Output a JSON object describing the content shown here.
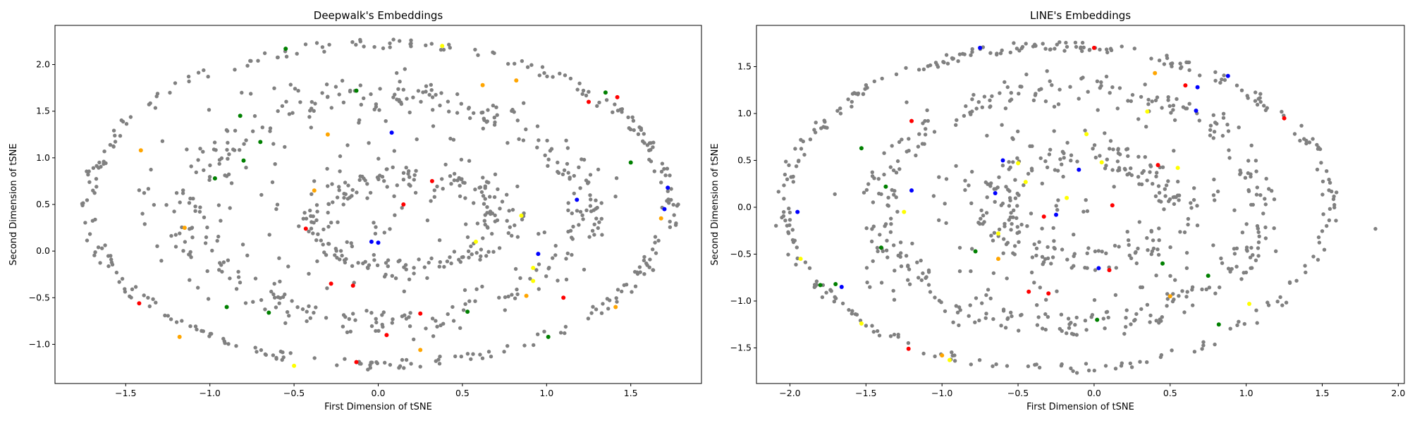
{
  "colors": {
    "gray": "#808080",
    "green": "#008000",
    "orange": "#ffa500",
    "yellow": "#ffff00",
    "red": "#ff0000",
    "blue": "#0000ff"
  },
  "chart_data": [
    {
      "type": "scatter",
      "title": "Deepwalk's Embeddings",
      "xlabel": "First Dimension of tSNE",
      "ylabel": "Second Dimension of tSNE",
      "xlim": [
        -1.92,
        1.92
      ],
      "ylim": [
        -1.42,
        2.42
      ],
      "xticks": [
        -1.5,
        -1.0,
        -0.5,
        0.0,
        0.5,
        1.0,
        1.5
      ],
      "yticks": [
        -1.0,
        -0.5,
        0.0,
        0.5,
        1.0,
        1.5,
        2.0
      ],
      "grid": false,
      "structure": {
        "outer_ring": {
          "cx": 0.0,
          "cy": 0.5,
          "rx": 1.73,
          "ry": 1.72
        },
        "middle_ring": {
          "cx": 0.05,
          "cy": 0.45,
          "rx": 1.18,
          "ry": 1.2
        },
        "inner_ring": {
          "cx": 0.2,
          "cy": 0.3,
          "rx": 0.55,
          "ry": 0.5
        }
      },
      "highlighted": [
        {
          "x": -1.42,
          "y": -0.56,
          "color": "red"
        },
        {
          "x": -1.41,
          "y": 1.08,
          "color": "orange"
        },
        {
          "x": -1.18,
          "y": -0.92,
          "color": "orange"
        },
        {
          "x": -1.15,
          "y": 0.25,
          "color": "orange"
        },
        {
          "x": -0.97,
          "y": 0.78,
          "color": "green"
        },
        {
          "x": -0.9,
          "y": -0.6,
          "color": "green"
        },
        {
          "x": -0.82,
          "y": 1.45,
          "color": "green"
        },
        {
          "x": -0.8,
          "y": 0.97,
          "color": "green"
        },
        {
          "x": -0.7,
          "y": 1.17,
          "color": "green"
        },
        {
          "x": -0.65,
          "y": -0.66,
          "color": "green"
        },
        {
          "x": -0.55,
          "y": 2.17,
          "color": "green"
        },
        {
          "x": -0.5,
          "y": -1.23,
          "color": "yellow"
        },
        {
          "x": -0.43,
          "y": 0.24,
          "color": "red"
        },
        {
          "x": -0.38,
          "y": 0.65,
          "color": "orange"
        },
        {
          "x": -0.3,
          "y": 1.25,
          "color": "orange"
        },
        {
          "x": -0.28,
          "y": -0.35,
          "color": "red"
        },
        {
          "x": -0.15,
          "y": -0.37,
          "color": "red"
        },
        {
          "x": -0.13,
          "y": 1.72,
          "color": "green"
        },
        {
          "x": -0.13,
          "y": -1.19,
          "color": "red"
        },
        {
          "x": -0.04,
          "y": 0.1,
          "color": "blue"
        },
        {
          "x": 0.0,
          "y": 0.09,
          "color": "blue"
        },
        {
          "x": 0.08,
          "y": 1.27,
          "color": "blue"
        },
        {
          "x": 0.05,
          "y": -0.9,
          "color": "red"
        },
        {
          "x": 0.15,
          "y": 0.5,
          "color": "red"
        },
        {
          "x": 0.25,
          "y": -0.67,
          "color": "red"
        },
        {
          "x": 0.25,
          "y": -1.06,
          "color": "orange"
        },
        {
          "x": 0.32,
          "y": 0.75,
          "color": "red"
        },
        {
          "x": 0.38,
          "y": 2.2,
          "color": "yellow"
        },
        {
          "x": 0.53,
          "y": -0.65,
          "color": "green"
        },
        {
          "x": 0.58,
          "y": 0.1,
          "color": "yellow"
        },
        {
          "x": 0.62,
          "y": 1.78,
          "color": "orange"
        },
        {
          "x": 0.82,
          "y": 1.83,
          "color": "orange"
        },
        {
          "x": 0.85,
          "y": 0.38,
          "color": "yellow"
        },
        {
          "x": 0.92,
          "y": -0.18,
          "color": "yellow"
        },
        {
          "x": 0.92,
          "y": -0.32,
          "color": "yellow"
        },
        {
          "x": 0.95,
          "y": -0.03,
          "color": "blue"
        },
        {
          "x": 0.88,
          "y": -0.48,
          "color": "orange"
        },
        {
          "x": 1.01,
          "y": -0.92,
          "color": "green"
        },
        {
          "x": 1.1,
          "y": -0.5,
          "color": "red"
        },
        {
          "x": 1.18,
          "y": 0.55,
          "color": "blue"
        },
        {
          "x": 1.25,
          "y": 1.6,
          "color": "red"
        },
        {
          "x": 1.35,
          "y": 1.7,
          "color": "green"
        },
        {
          "x": 1.42,
          "y": 1.65,
          "color": "red"
        },
        {
          "x": 1.41,
          "y": -0.6,
          "color": "orange"
        },
        {
          "x": 1.5,
          "y": 0.95,
          "color": "green"
        },
        {
          "x": 1.7,
          "y": 0.45,
          "color": "blue"
        },
        {
          "x": 1.72,
          "y": 0.68,
          "color": "blue"
        },
        {
          "x": 1.68,
          "y": 0.35,
          "color": "orange"
        }
      ]
    },
    {
      "type": "scatter",
      "title": "LINE's Embeddings",
      "xlabel": "First Dimension of tSNE",
      "ylabel": "Second Dimension of tSNE",
      "xlim": [
        -2.22,
        2.04
      ],
      "ylim": [
        -1.88,
        1.94
      ],
      "xticks": [
        -2.0,
        -1.5,
        -1.0,
        -0.5,
        0.0,
        0.5,
        1.0,
        1.5,
        2.0
      ],
      "yticks": [
        -1.5,
        -1.0,
        -0.5,
        0.0,
        0.5,
        1.0,
        1.5
      ],
      "grid": false,
      "structure": {
        "outer_ring": {
          "cx": -0.25,
          "cy": 0.0,
          "rx": 1.8,
          "ry": 1.72
        },
        "middle_ring": {
          "cx": -0.15,
          "cy": 0.0,
          "rx": 1.25,
          "ry": 1.25
        },
        "inner_ring": {
          "cx": -0.05,
          "cy": 0.0,
          "rx": 0.6,
          "ry": 0.55
        },
        "outlier": {
          "x": 1.85,
          "y": -0.23
        }
      },
      "highlighted": [
        {
          "x": -1.95,
          "y": -0.05,
          "color": "blue"
        },
        {
          "x": -1.93,
          "y": -0.55,
          "color": "yellow"
        },
        {
          "x": -1.8,
          "y": -0.83,
          "color": "green"
        },
        {
          "x": -1.7,
          "y": -0.82,
          "color": "green"
        },
        {
          "x": -1.66,
          "y": -0.85,
          "color": "blue"
        },
        {
          "x": -1.53,
          "y": 0.63,
          "color": "green"
        },
        {
          "x": -1.53,
          "y": -1.24,
          "color": "yellow"
        },
        {
          "x": -1.4,
          "y": -0.43,
          "color": "green"
        },
        {
          "x": -1.37,
          "y": 0.22,
          "color": "green"
        },
        {
          "x": -1.22,
          "y": -1.51,
          "color": "red"
        },
        {
          "x": -1.2,
          "y": 0.92,
          "color": "red"
        },
        {
          "x": -1.2,
          "y": 0.18,
          "color": "blue"
        },
        {
          "x": -1.25,
          "y": -0.05,
          "color": "yellow"
        },
        {
          "x": -1.0,
          "y": -1.58,
          "color": "orange"
        },
        {
          "x": -0.95,
          "y": -1.63,
          "color": "yellow"
        },
        {
          "x": -0.78,
          "y": -0.47,
          "color": "green"
        },
        {
          "x": -0.75,
          "y": 1.7,
          "color": "blue"
        },
        {
          "x": -0.65,
          "y": 0.15,
          "color": "blue"
        },
        {
          "x": -0.63,
          "y": -0.28,
          "color": "yellow"
        },
        {
          "x": -0.63,
          "y": -0.55,
          "color": "orange"
        },
        {
          "x": -0.6,
          "y": 0.5,
          "color": "blue"
        },
        {
          "x": -0.5,
          "y": 0.47,
          "color": "yellow"
        },
        {
          "x": -0.45,
          "y": 0.27,
          "color": "yellow"
        },
        {
          "x": -0.43,
          "y": -0.9,
          "color": "red"
        },
        {
          "x": -0.33,
          "y": -0.1,
          "color": "red"
        },
        {
          "x": -0.3,
          "y": -0.92,
          "color": "red"
        },
        {
          "x": -0.25,
          "y": -0.08,
          "color": "blue"
        },
        {
          "x": -0.18,
          "y": 0.1,
          "color": "yellow"
        },
        {
          "x": -0.1,
          "y": 0.4,
          "color": "blue"
        },
        {
          "x": 0.0,
          "y": 1.7,
          "color": "red"
        },
        {
          "x": -0.05,
          "y": 0.78,
          "color": "yellow"
        },
        {
          "x": 0.03,
          "y": -0.65,
          "color": "blue"
        },
        {
          "x": 0.02,
          "y": -1.2,
          "color": "green"
        },
        {
          "x": 0.05,
          "y": 0.48,
          "color": "yellow"
        },
        {
          "x": 0.1,
          "y": -0.67,
          "color": "red"
        },
        {
          "x": 0.12,
          "y": 0.02,
          "color": "red"
        },
        {
          "x": 0.35,
          "y": 1.02,
          "color": "yellow"
        },
        {
          "x": 0.4,
          "y": 1.43,
          "color": "orange"
        },
        {
          "x": 0.42,
          "y": 0.45,
          "color": "red"
        },
        {
          "x": 0.45,
          "y": -0.6,
          "color": "green"
        },
        {
          "x": 0.5,
          "y": -0.95,
          "color": "orange"
        },
        {
          "x": 0.55,
          "y": 0.42,
          "color": "yellow"
        },
        {
          "x": 0.6,
          "y": 1.3,
          "color": "red"
        },
        {
          "x": 0.67,
          "y": 1.03,
          "color": "blue"
        },
        {
          "x": 0.68,
          "y": 1.28,
          "color": "blue"
        },
        {
          "x": 0.75,
          "y": -0.73,
          "color": "green"
        },
        {
          "x": 0.82,
          "y": -1.25,
          "color": "green"
        },
        {
          "x": 0.88,
          "y": 1.4,
          "color": "blue"
        },
        {
          "x": 1.02,
          "y": -1.03,
          "color": "yellow"
        },
        {
          "x": 1.25,
          "y": 0.95,
          "color": "red"
        }
      ]
    }
  ]
}
